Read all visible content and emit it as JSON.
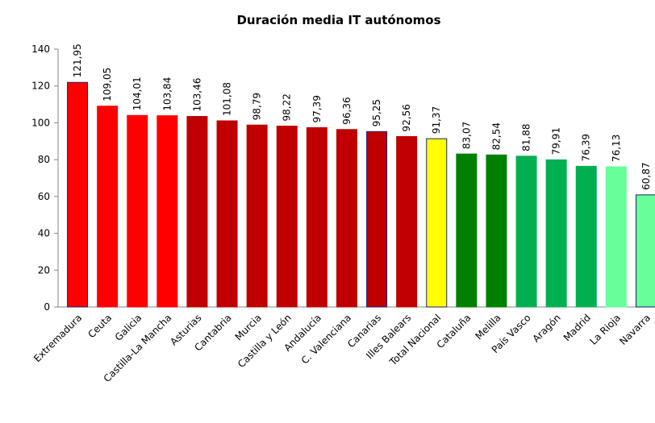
{
  "chart_data": {
    "type": "bar",
    "title": "Duración media IT autónomos",
    "categories": [
      "Extremadura",
      "Ceuta",
      "Galicia",
      "Castilla-La Mancha",
      "Asturias",
      "Cantabria",
      "Murcia",
      "Castilla y León",
      "Andalucía",
      "C. Valenciana",
      "Canarias",
      "Illes Balears",
      "Total Nacional",
      "Cataluña",
      "Melilla",
      "País Vasco",
      "Aragón",
      "Madrid",
      "La Rioja",
      "Navarra"
    ],
    "values": [
      121.95,
      109.05,
      104.01,
      103.84,
      103.46,
      101.08,
      98.79,
      98.22,
      97.39,
      96.36,
      95.25,
      92.56,
      91.37,
      83.07,
      82.54,
      81.88,
      79.91,
      76.39,
      76.13,
      60.87
    ],
    "value_labels": [
      "121,95",
      "109,05",
      "104,01",
      "103,84",
      "103,46",
      "101,08",
      "98,79",
      "98,22",
      "97,39",
      "96,36",
      "95,25",
      "92,56",
      "91,37",
      "83,07",
      "82,54",
      "81,88",
      "79,91",
      "76,39",
      "76,13",
      "60,87"
    ],
    "colors": [
      "#ff0000",
      "#ff0000",
      "#ff0000",
      "#ff0000",
      "#c00000",
      "#c00000",
      "#c00000",
      "#c00000",
      "#c00000",
      "#c00000",
      "#c00000",
      "#c00000",
      "#ffff00",
      "#008000",
      "#008000",
      "#00b050",
      "#00b050",
      "#00b050",
      "#66ff99",
      "#66ff99"
    ],
    "edgecolors": [
      "#1f1f6e",
      "#ff0000",
      "#ff0000",
      "#ff0000",
      "#c00000",
      "#c00000",
      "#c00000",
      "#c00000",
      "#c00000",
      "#c00000",
      "#1f1f6e",
      "#c00000",
      "#1f1f6e",
      "#008000",
      "#008000",
      "#00b050",
      "#00b050",
      "#00b050",
      "#66ff99",
      "#1f1f6e"
    ],
    "ylim": [
      0,
      140
    ],
    "yticks": [
      0,
      20,
      40,
      60,
      80,
      100,
      120,
      140
    ],
    "grid": false
  }
}
